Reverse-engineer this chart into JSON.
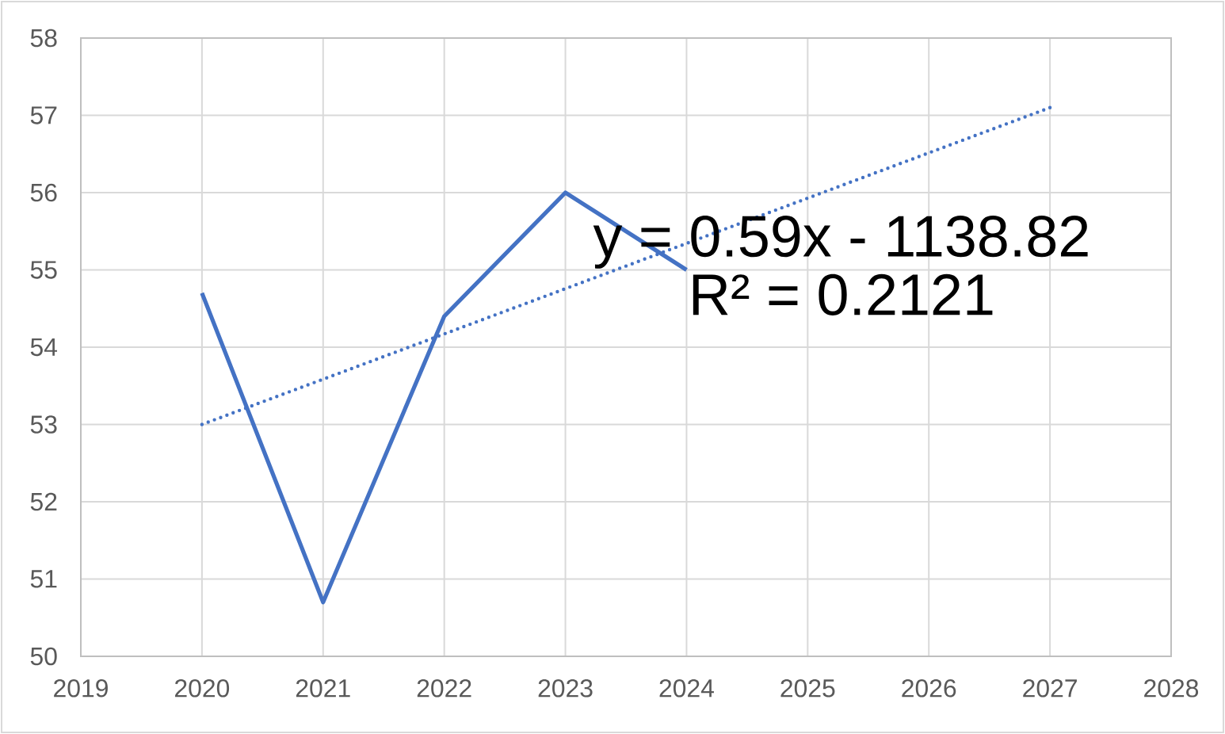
{
  "chart_data": {
    "type": "line",
    "x": [
      2020,
      2021,
      2022,
      2023,
      2024
    ],
    "series": [
      {
        "color": "#4472c4",
        "line_style": "solid",
        "values": [
          54.7,
          50.7,
          54.4,
          56.0,
          55.0
        ]
      },
      {
        "type": "line",
        "x": [
          2020,
          2027
        ],
        "color": "#4472c4",
        "line_style": "dotted",
        "values": [
          53.0,
          57.1
        ]
      }
    ],
    "xlim": [
      2019,
      2028
    ],
    "xticks": [
      2019,
      2020,
      2021,
      2022,
      2023,
      2024,
      2025,
      2026,
      2027,
      2028
    ],
    "ylim": [
      50,
      58
    ],
    "yticks": [
      50,
      51,
      52,
      53,
      54,
      55,
      56,
      57,
      58
    ],
    "grid": true,
    "marker": "none",
    "annotations": [
      "y = 0.59x - 1138.82",
      "R² = 0.2121"
    ]
  }
}
